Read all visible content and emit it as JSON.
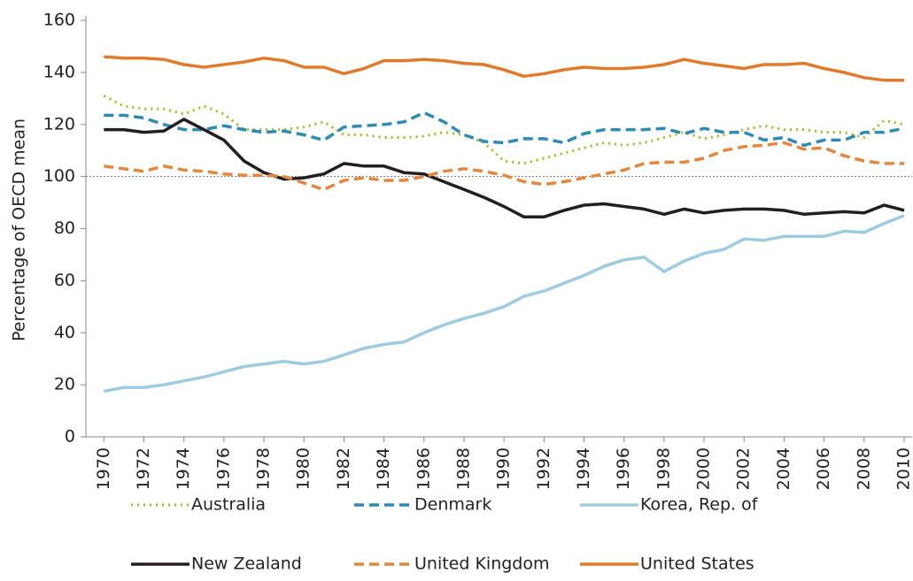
{
  "chart_data": {
    "type": "line",
    "y_label": "Percentage of OECD mean",
    "x": [
      1970,
      1971,
      1972,
      1973,
      1974,
      1975,
      1976,
      1977,
      1978,
      1979,
      1980,
      1981,
      1982,
      1983,
      1984,
      1985,
      1986,
      1987,
      1988,
      1989,
      1990,
      1991,
      1992,
      1993,
      1994,
      1995,
      1996,
      1997,
      1998,
      1999,
      2000,
      2001,
      2002,
      2003,
      2004,
      2005,
      2006,
      2007,
      2008,
      2009,
      2010
    ],
    "xlim": [
      1969.1,
      2010.4
    ],
    "xticks": [
      1970,
      1972,
      1974,
      1976,
      1978,
      1980,
      1982,
      1984,
      1986,
      1988,
      1990,
      1992,
      1994,
      1996,
      1998,
      2000,
      2002,
      2004,
      2006,
      2008,
      2010
    ],
    "ylim": [
      0,
      160
    ],
    "yticks": [
      0,
      20,
      40,
      60,
      80,
      100,
      120,
      140,
      160
    ],
    "reference_line": 100,
    "grid": false,
    "legend_position": "bottom",
    "series": [
      {
        "name": "Australia",
        "color": "#a9b81e",
        "dash": "dotted",
        "values": [
          131,
          127,
          126,
          126,
          124,
          127,
          124,
          118,
          118,
          118,
          119,
          121,
          116,
          116,
          115,
          115,
          115.5,
          117,
          116,
          113,
          106,
          105,
          107,
          109,
          111,
          113,
          112,
          113,
          115,
          117,
          114.5,
          116,
          118,
          119.5,
          118,
          118,
          117,
          117,
          115,
          121.5,
          120
        ]
      },
      {
        "name": "Denmark",
        "color": "#2e8bb4",
        "dash": "dashed",
        "values": [
          123.5,
          123.5,
          122.5,
          120,
          118,
          118,
          119.5,
          118,
          117,
          117.5,
          116,
          114,
          119,
          119.5,
          120,
          121,
          124.5,
          121,
          116,
          113.5,
          113,
          114.5,
          114.5,
          113,
          116.5,
          118,
          118,
          118,
          118.5,
          116.5,
          118.5,
          117,
          117,
          114,
          115,
          112,
          114,
          114,
          117,
          117,
          118.5
        ]
      },
      {
        "name": "Korea, Rep. of",
        "color": "#9fcbe0",
        "dash": "solid",
        "values": [
          17.5,
          19,
          19,
          20,
          21.5,
          23,
          25,
          27,
          28,
          29,
          28,
          29,
          31.5,
          34,
          35.5,
          36.5,
          40,
          43,
          45.5,
          47.5,
          50,
          54,
          56,
          59,
          62,
          65.5,
          68,
          69,
          63.5,
          67.5,
          70.5,
          72,
          76,
          75.5,
          77,
          77,
          77,
          79,
          78.5,
          82,
          85
        ]
      },
      {
        "name": "New Zealand",
        "color": "#231f20",
        "dash": "solid",
        "values": [
          118,
          118,
          117,
          117.5,
          122,
          118,
          114,
          106,
          101.5,
          99,
          99.5,
          101,
          105,
          104,
          104,
          101.5,
          101,
          98,
          95,
          92,
          88.5,
          84.5,
          84.5,
          87,
          89,
          89.5,
          88.5,
          87.5,
          85.5,
          87.5,
          86,
          87,
          87.5,
          87.5,
          87,
          85.5,
          86,
          86.5,
          86,
          89,
          87
        ]
      },
      {
        "name": "United Kingdom",
        "color": "#e2873d",
        "dash": "dashed",
        "values": [
          104,
          103,
          102,
          104,
          102.5,
          102,
          101,
          100.5,
          100.5,
          100,
          97.5,
          95,
          98.5,
          99.5,
          98.5,
          98.5,
          100,
          102,
          103,
          102,
          100.5,
          98,
          97,
          98,
          99.5,
          101,
          102.5,
          105,
          105.5,
          105.5,
          107,
          110,
          111.5,
          112,
          113,
          110.5,
          111,
          108,
          106,
          105,
          105
        ]
      },
      {
        "name": "United States",
        "color": "#e07a2c",
        "dash": "solid",
        "values": [
          146,
          145.5,
          145.5,
          145,
          143,
          142,
          143,
          144,
          145.5,
          144.5,
          142,
          142,
          139.5,
          141.5,
          144.5,
          144.5,
          145,
          144.5,
          143.5,
          143,
          141,
          138.5,
          139.5,
          141,
          142,
          141.5,
          141.5,
          142,
          143,
          145,
          143.5,
          142.5,
          141.5,
          143,
          143,
          143.5,
          141.5,
          140,
          138,
          137,
          137
        ]
      }
    ]
  }
}
